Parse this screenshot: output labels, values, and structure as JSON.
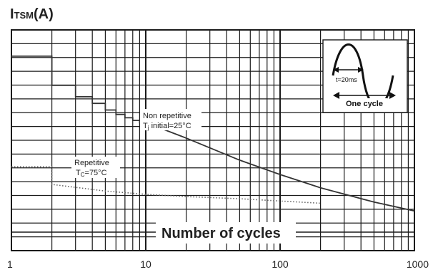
{
  "chart_data": {
    "type": "line",
    "title": "",
    "ylabel": {
      "main": "I",
      "sub": "TSM",
      "unit": "(A)"
    },
    "xlabel": "Number of cycles",
    "xscale": "log",
    "xlim": [
      1,
      1000
    ],
    "x_ticks": [
      "1",
      "10",
      "100",
      "1000"
    ],
    "grid": true,
    "series": [
      {
        "label_lines": [
          "Non repetitive",
          "T",
          "j",
          " initial=25°C"
        ],
        "style": "solid-stepped",
        "points": [
          [
            1,
            0.881
          ],
          [
            2,
            0.881
          ],
          [
            2,
            0.749
          ],
          [
            3,
            0.749
          ],
          [
            3,
            0.697
          ],
          [
            4,
            0.697
          ],
          [
            4,
            0.667
          ],
          [
            5,
            0.667
          ],
          [
            5,
            0.637
          ],
          [
            6,
            0.637
          ],
          [
            6,
            0.617
          ],
          [
            7,
            0.617
          ],
          [
            7,
            0.602
          ],
          [
            8,
            0.602
          ],
          [
            8,
            0.59
          ],
          [
            9,
            0.59
          ],
          [
            9,
            0.58
          ],
          [
            10,
            0.58
          ],
          [
            20,
            0.51
          ],
          [
            50,
            0.41
          ],
          [
            100,
            0.345
          ],
          [
            200,
            0.285
          ],
          [
            500,
            0.22
          ],
          [
            1000,
            0.18
          ]
        ]
      },
      {
        "label_lines": [
          "Repetitive",
          "T",
          "C",
          "=75°C"
        ],
        "style": "dotted",
        "points": [
          [
            1,
            0.38
          ],
          [
            2,
            0.38
          ],
          [
            2,
            0.3
          ],
          [
            5,
            0.27
          ],
          [
            10,
            0.255
          ],
          [
            20,
            0.245
          ],
          [
            50,
            0.235
          ],
          [
            100,
            0.225
          ],
          [
            200,
            0.215
          ]
        ]
      }
    ],
    "inset": {
      "period_label": "t=20ms",
      "cycle_label": "One cycle"
    }
  }
}
